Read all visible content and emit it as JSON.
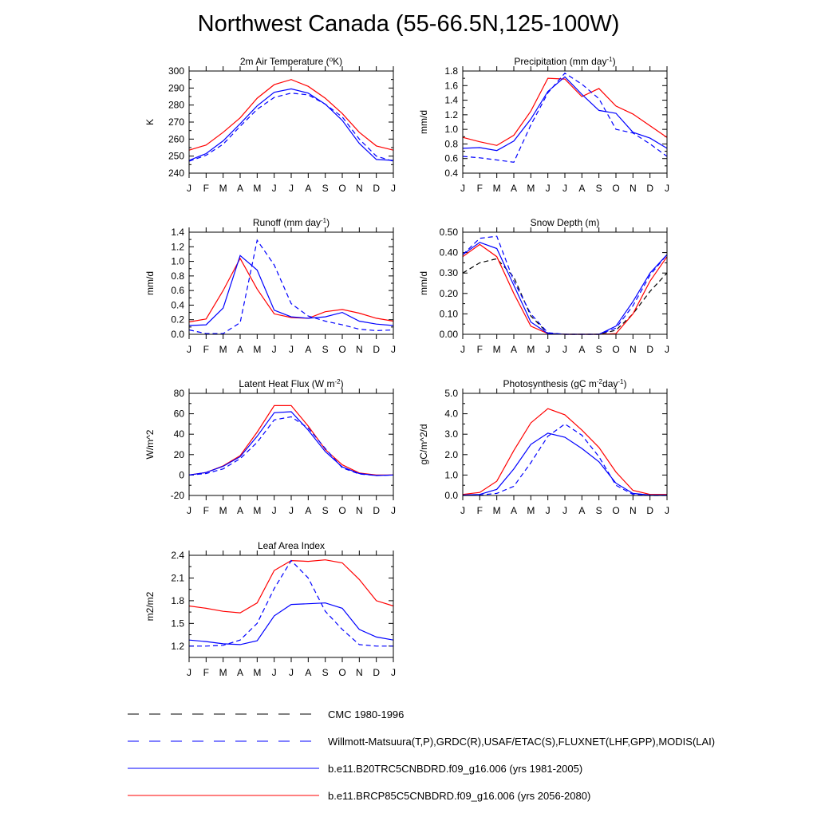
{
  "title": "Northwest Canada (55-66.5N,125-100W)",
  "months": [
    "J",
    "F",
    "M",
    "A",
    "M",
    "J",
    "J",
    "A",
    "S",
    "O",
    "N",
    "D",
    "J"
  ],
  "colors": {
    "obs": "#0000ff",
    "cmc": "#000000",
    "hist": "#0000ff",
    "future": "#ff0000"
  },
  "legend": [
    {
      "key": "cmc",
      "label": "CMC 1980-1996",
      "color": "#000000",
      "dash": true
    },
    {
      "key": "obs",
      "label": "Willmott-Matsuura(T,P),GRDC(R),USAF/ETAC(S),FLUXNET(LHF,GPP),MODIS(LAI)",
      "color": "#0000ff",
      "dash": true
    },
    {
      "key": "hist",
      "label": "b.e11.B20TRC5CNBDRD.f09_g16.006 (yrs 1981-2005)",
      "color": "#0000ff",
      "dash": false
    },
    {
      "key": "future",
      "label": "b.e11.BRCP85C5CNBDRD.f09_g16.006 (yrs 2056-2080)",
      "color": "#ff0000",
      "dash": false
    }
  ],
  "chart_data": [
    {
      "type": "line",
      "title": "2m Air Temperature (°K)",
      "title_parts": [
        [
          "2m Air Temperature (",
          "n"
        ],
        [
          "o",
          "sup"
        ],
        [
          "K)",
          "n"
        ]
      ],
      "ylabel": "K",
      "ylim": [
        240,
        300
      ],
      "yticks": [
        "240",
        "250",
        "260",
        "270",
        "280",
        "290",
        "300"
      ],
      "x": [
        "J",
        "F",
        "M",
        "A",
        "M",
        "J",
        "J",
        "A",
        "S",
        "O",
        "N",
        "D",
        "J"
      ],
      "series": [
        {
          "key": "future",
          "values": [
            253.5,
            256.5,
            264,
            272.5,
            284,
            292,
            295,
            291,
            284,
            275,
            264,
            256,
            253.5
          ]
        },
        {
          "key": "hist",
          "values": [
            247.5,
            251.5,
            259,
            269,
            279.5,
            287.5,
            289.5,
            287,
            280.5,
            271,
            257.5,
            248,
            247.5
          ]
        },
        {
          "key": "obs",
          "values": [
            247,
            250.5,
            257,
            267.5,
            277.5,
            284.5,
            287,
            286,
            280.5,
            273,
            260,
            250,
            247
          ]
        }
      ]
    },
    {
      "type": "line",
      "title": "Precipitation (mm day-1)",
      "title_parts": [
        [
          "Precipitation (mm day",
          "n"
        ],
        [
          "-1",
          "sup"
        ],
        [
          ")",
          "n"
        ]
      ],
      "ylabel": "mm/d",
      "ylim": [
        0.4,
        1.8
      ],
      "yticks": [
        "0.4",
        "0.6",
        "0.8",
        "1.0",
        "1.2",
        "1.4",
        "1.6",
        "1.8"
      ],
      "x": [
        "J",
        "F",
        "M",
        "A",
        "M",
        "J",
        "J",
        "A",
        "S",
        "O",
        "N",
        "D",
        "J"
      ],
      "series": [
        {
          "key": "future",
          "values": [
            0.89,
            0.83,
            0.78,
            0.92,
            1.25,
            1.7,
            1.69,
            1.45,
            1.56,
            1.32,
            1.21,
            1.05,
            0.89
          ]
        },
        {
          "key": "hist",
          "values": [
            0.74,
            0.75,
            0.71,
            0.84,
            1.14,
            1.52,
            1.72,
            1.48,
            1.26,
            1.22,
            0.96,
            0.88,
            0.74
          ]
        },
        {
          "key": "obs",
          "values": [
            0.63,
            0.61,
            0.58,
            0.55,
            1.06,
            1.5,
            1.77,
            1.62,
            1.42,
            1.0,
            0.95,
            0.8,
            0.63
          ]
        }
      ]
    },
    {
      "type": "line",
      "title": "Runoff (mm day-1)",
      "title_parts": [
        [
          "Runoff (mm day",
          "n"
        ],
        [
          "-1",
          "sup"
        ],
        [
          ")",
          "n"
        ]
      ],
      "ylabel": "mm/d",
      "ylim": [
        0.0,
        1.4
      ],
      "yticks": [
        "0.0",
        "0.2",
        "0.4",
        "0.6",
        "0.8",
        "1.0",
        "1.2",
        "1.4"
      ],
      "x": [
        "J",
        "F",
        "M",
        "A",
        "M",
        "J",
        "J",
        "A",
        "S",
        "O",
        "N",
        "D",
        "J"
      ],
      "series": [
        {
          "key": "future",
          "values": [
            0.17,
            0.21,
            0.6,
            1.04,
            0.62,
            0.28,
            0.23,
            0.22,
            0.31,
            0.34,
            0.29,
            0.22,
            0.18
          ]
        },
        {
          "key": "hist",
          "values": [
            0.12,
            0.13,
            0.36,
            1.08,
            0.88,
            0.33,
            0.24,
            0.22,
            0.24,
            0.3,
            0.18,
            0.14,
            0.12
          ]
        },
        {
          "key": "obs",
          "values": [
            0.06,
            0.01,
            0.01,
            0.16,
            1.29,
            0.95,
            0.42,
            0.25,
            0.18,
            0.13,
            0.07,
            0.05,
            0.06
          ]
        }
      ]
    },
    {
      "type": "line",
      "title": "Snow Depth (m)",
      "title_parts": [
        [
          "Snow Depth (m)",
          "n"
        ]
      ],
      "ylabel": "mm/d",
      "ylim": [
        0.0,
        0.5
      ],
      "yticks": [
        "0.00",
        "0.10",
        "0.20",
        "0.30",
        "0.40",
        "0.50"
      ],
      "x": [
        "J",
        "F",
        "M",
        "A",
        "M",
        "J",
        "J",
        "A",
        "S",
        "O",
        "N",
        "D",
        "J"
      ],
      "series": [
        {
          "key": "cmc",
          "values": [
            0.3,
            0.35,
            0.37,
            0.28,
            0.09,
            0.005,
            0.0,
            0.0,
            0.0,
            0.02,
            0.1,
            0.21,
            0.3
          ]
        },
        {
          "key": "future",
          "values": [
            0.38,
            0.44,
            0.38,
            0.2,
            0.04,
            0.003,
            0.0,
            0.0,
            0.0,
            0.003,
            0.1,
            0.26,
            0.38
          ]
        },
        {
          "key": "hist",
          "values": [
            0.39,
            0.45,
            0.42,
            0.24,
            0.06,
            0.004,
            0.0,
            0.0,
            0.0,
            0.04,
            0.16,
            0.3,
            0.39
          ]
        },
        {
          "key": "obs",
          "values": [
            0.39,
            0.47,
            0.48,
            0.26,
            0.1,
            0.008,
            0.0,
            0.0,
            0.0,
            0.03,
            0.14,
            0.29,
            0.39
          ]
        }
      ]
    },
    {
      "type": "line",
      "title": "Latent Heat Flux (W m-2)",
      "title_parts": [
        [
          "Latent Heat Flux (W m",
          "n"
        ],
        [
          "-2",
          "sup"
        ],
        [
          ")",
          "n"
        ]
      ],
      "ylabel": "W/m^2",
      "ylim": [
        -20,
        80
      ],
      "yticks": [
        "-20",
        "0",
        "20",
        "40",
        "60",
        "80"
      ],
      "x": [
        "J",
        "F",
        "M",
        "A",
        "M",
        "J",
        "J",
        "A",
        "S",
        "O",
        "N",
        "D",
        "J"
      ],
      "series": [
        {
          "key": "future",
          "values": [
            0,
            2.5,
            9,
            19,
            42,
            68,
            68,
            48,
            25,
            10,
            2,
            0,
            0
          ]
        },
        {
          "key": "hist",
          "values": [
            0,
            2.5,
            8.5,
            18,
            38,
            61,
            62,
            44,
            23,
            8,
            1.5,
            -0.5,
            0
          ]
        },
        {
          "key": "obs",
          "values": [
            0,
            1.5,
            6,
            16,
            32,
            54,
            57,
            46,
            26,
            7,
            1,
            -0.5,
            0
          ]
        }
      ]
    },
    {
      "type": "line",
      "title": "Photosynthesis (gC m-2day-1)",
      "title_parts": [
        [
          "Photosynthesis (gC m",
          "n"
        ],
        [
          "-2",
          "sup"
        ],
        [
          "day",
          "n"
        ],
        [
          "-1",
          "sup"
        ],
        [
          ")",
          "n"
        ]
      ],
      "ylabel": "gC/m^2/d",
      "ylim": [
        0.0,
        5.0
      ],
      "yticks": [
        "0.0",
        "1.0",
        "2.0",
        "3.0",
        "4.0",
        "5.0"
      ],
      "x": [
        "J",
        "F",
        "M",
        "A",
        "M",
        "J",
        "J",
        "A",
        "S",
        "O",
        "N",
        "D",
        "J"
      ],
      "series": [
        {
          "key": "future",
          "values": [
            0.05,
            0.15,
            0.7,
            2.2,
            3.55,
            4.25,
            3.95,
            3.2,
            2.35,
            1.15,
            0.25,
            0.05,
            0.05
          ]
        },
        {
          "key": "hist",
          "values": [
            0.02,
            0.05,
            0.3,
            1.3,
            2.5,
            3.05,
            2.85,
            2.3,
            1.65,
            0.6,
            0.1,
            0.02,
            0.02
          ]
        },
        {
          "key": "obs",
          "values": [
            0.0,
            0.02,
            0.1,
            0.45,
            1.6,
            2.9,
            3.5,
            2.95,
            1.9,
            0.5,
            0.05,
            0.0,
            0.0
          ]
        }
      ]
    },
    {
      "type": "line",
      "title": "Leaf Area Index",
      "title_parts": [
        [
          "Leaf Area Index",
          "n"
        ]
      ],
      "ylabel": "m2/m2",
      "ylim": [
        1.05,
        2.4
      ],
      "yticks": [
        "1.2",
        "1.5",
        "1.8",
        "2.1",
        "2.4"
      ],
      "ytick_values": [
        1.2,
        1.5,
        1.8,
        2.1,
        2.4
      ],
      "x": [
        "J",
        "F",
        "M",
        "A",
        "M",
        "J",
        "J",
        "A",
        "S",
        "O",
        "N",
        "D",
        "J"
      ],
      "series": [
        {
          "key": "future",
          "values": [
            1.73,
            1.7,
            1.66,
            1.64,
            1.77,
            2.2,
            2.33,
            2.32,
            2.34,
            2.3,
            2.08,
            1.8,
            1.73
          ]
        },
        {
          "key": "hist",
          "values": [
            1.28,
            1.26,
            1.23,
            1.22,
            1.27,
            1.6,
            1.75,
            1.76,
            1.77,
            1.7,
            1.42,
            1.32,
            1.28
          ]
        },
        {
          "key": "obs",
          "values": [
            1.2,
            1.2,
            1.21,
            1.28,
            1.5,
            1.96,
            2.33,
            2.1,
            1.66,
            1.42,
            1.22,
            1.2,
            1.2
          ]
        }
      ]
    }
  ]
}
